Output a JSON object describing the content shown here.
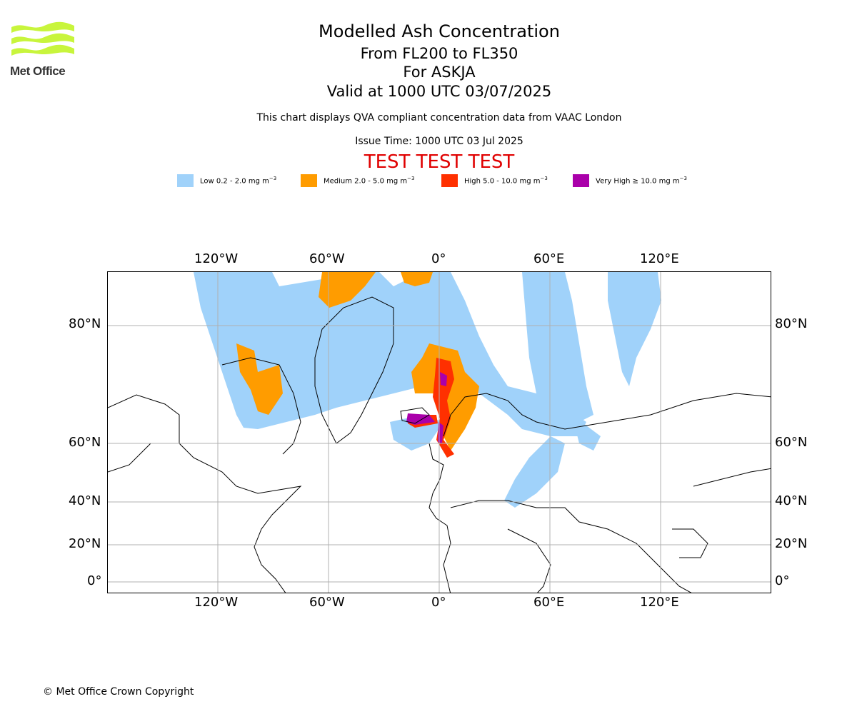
{
  "header": {
    "logo_text": "Met Office",
    "title": "Modelled Ash Concentration",
    "flight_levels": "From FL200 to FL350",
    "volcano": "For ASKJA",
    "valid_time": "Valid at 1000 UTC 03/07/2025",
    "description": "This chart displays QVA compliant concentration data from VAAC London",
    "issue_time": "Issue Time: 1000 UTC 03 Jul 2025",
    "test_banner": "TEST TEST TEST"
  },
  "legend": [
    {
      "label": "Low 0.2 - 2.0 mg m",
      "sup": "−3",
      "color": "#a0d2fa"
    },
    {
      "label": "Medium 2.0 - 5.0 mg m",
      "sup": "−3",
      "color": "#ff9c00"
    },
    {
      "label": "High 5.0 - 10.0 mg m",
      "sup": "−3",
      "color": "#ff3000"
    },
    {
      "label": "Very High ≥ 10.0 mg m",
      "sup": "−3",
      "color": "#aa00aa"
    }
  ],
  "map": {
    "longitude_ticks": [
      "120°W",
      "60°W",
      "0°",
      "60°E",
      "120°E"
    ],
    "latitude_ticks": [
      "80°N",
      "60°N",
      "40°N",
      "20°N",
      "0°"
    ],
    "gridlines": true
  },
  "footer": {
    "copyright": "© Met Office Crown Copyright"
  }
}
